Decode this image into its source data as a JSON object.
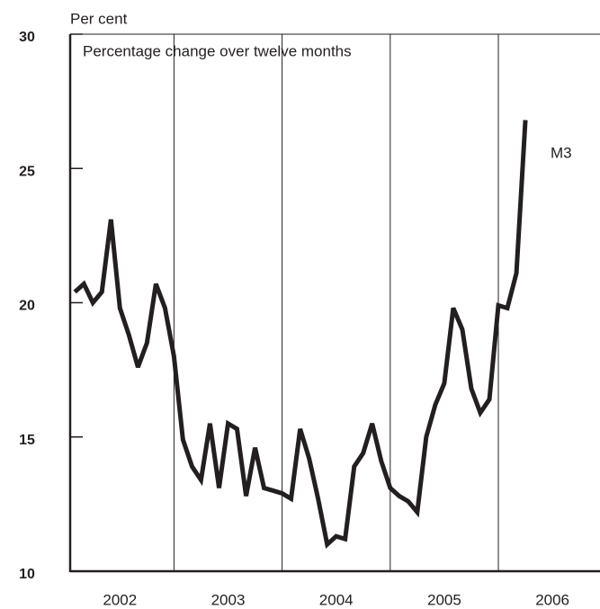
{
  "chart_data": {
    "type": "line",
    "y_axis_label": "Per cent",
    "subtitle": "Percentage change over twelve months",
    "categories": [
      "2002",
      "2003",
      "2004",
      "2005",
      "2006"
    ],
    "x": [
      2002.083,
      2002.167,
      2002.25,
      2002.333,
      2002.417,
      2002.5,
      2002.583,
      2002.667,
      2002.75,
      2002.833,
      2002.917,
      2003,
      2003.083,
      2003.167,
      2003.25,
      2003.333,
      2003.417,
      2003.5,
      2003.583,
      2003.667,
      2003.75,
      2003.833,
      2003.917,
      2004,
      2004.083,
      2004.167,
      2004.25,
      2004.333,
      2004.417,
      2004.5,
      2004.583,
      2004.667,
      2004.75,
      2004.833,
      2004.917,
      2005,
      2005.083,
      2005.167,
      2005.25,
      2005.333,
      2005.417,
      2005.5,
      2005.583,
      2005.667,
      2005.75,
      2005.833,
      2005.917,
      2006,
      2006.083,
      2006.167,
      2006.25
    ],
    "series": [
      {
        "name": "M3",
        "color": "#231f20",
        "values": [
          20.4,
          20.7,
          20.0,
          20.4,
          23.1,
          19.8,
          18.8,
          17.6,
          18.5,
          20.7,
          19.8,
          18.0,
          14.9,
          13.9,
          13.4,
          15.5,
          13.1,
          15.5,
          15.3,
          12.8,
          14.6,
          13.1,
          13.0,
          12.9,
          12.7,
          15.3,
          14.2,
          12.7,
          11.0,
          11.3,
          11.2,
          13.9,
          14.4,
          15.5,
          14.1,
          13.1,
          12.8,
          12.6,
          12.2,
          15.0,
          16.2,
          17.0,
          19.8,
          19.0,
          16.8,
          15.9,
          16.4,
          19.9,
          19.8,
          21.1,
          26.8
        ]
      }
    ],
    "xlim": [
      2002.04,
      2006.94
    ],
    "xticks": [
      2003,
      2004,
      2005,
      2006
    ],
    "ylim": [
      10,
      30
    ],
    "yticks": [
      10,
      15,
      20,
      25,
      30
    ],
    "grid": true
  }
}
